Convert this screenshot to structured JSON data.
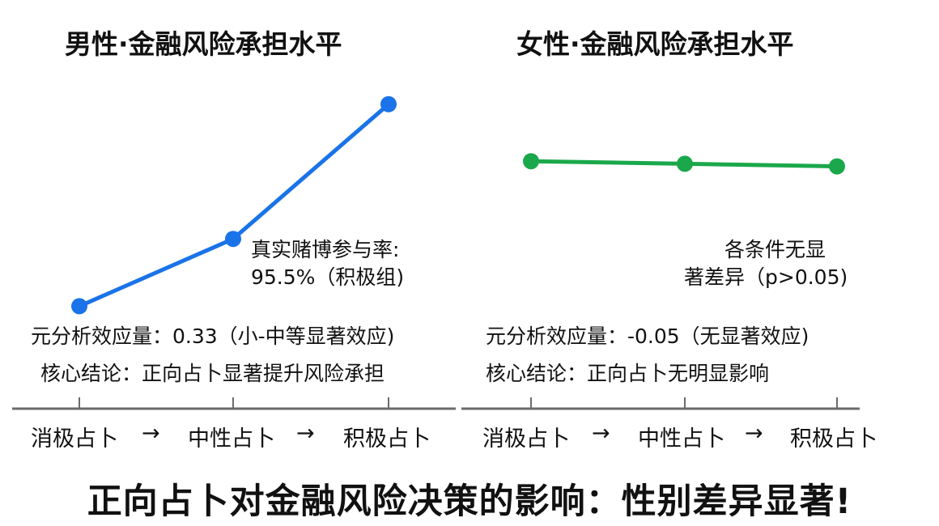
{
  "chart_data": [
    {
      "type": "line",
      "title": "男性·金融风险承担水平",
      "categories": [
        "消极占卜",
        "中性占卜",
        "积极占卜"
      ],
      "arrow": "→",
      "values": [
        13,
        39,
        91
      ],
      "ylim": [
        0,
        100
      ],
      "y_axis_shown": false,
      "grid": false,
      "color": "#1a73e8",
      "annotations": {
        "point_note": [
          "真实赌博参与率:",
          "95.5%（积极组)"
        ],
        "effect": "元分析效应量：0.33（小-中等显著效应)",
        "conclusion": "核心结论：正向占卜显著提升风险承担"
      }
    },
    {
      "type": "line",
      "title": "女性·金融风险承担水平",
      "categories": [
        "消极占卜",
        "中性占卜",
        "积极占卜"
      ],
      "arrow": "→",
      "values": [
        69,
        68,
        67
      ],
      "ylim": [
        0,
        100
      ],
      "y_axis_shown": false,
      "grid": false,
      "color": "#1aa84a",
      "annotations": {
        "point_note": [
          "各条件无显",
          "著差异（p>0.05)"
        ],
        "effect": "元分析效应量：-0.05（无显著效应)",
        "conclusion": "核心结论：正向占卜无明显影响"
      }
    }
  ],
  "main_title": "正向占卜对金融风险决策的影响：性别差异显著!"
}
